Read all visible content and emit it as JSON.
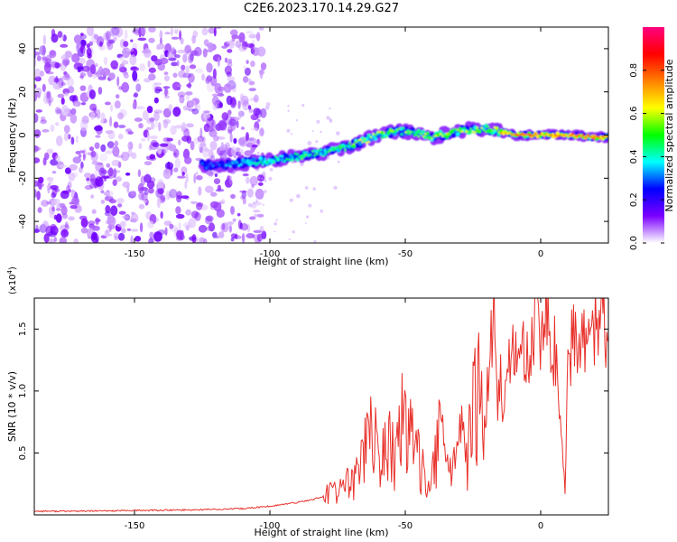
{
  "title": "C2E6.2023.170.14.29.G27",
  "chart_data": [
    {
      "type": "heatmap",
      "xlabel": "Height of straight line (km)",
      "ylabel": "Frequency (Hz)",
      "xlim": [
        -187,
        25
      ],
      "ylim": [
        -50,
        50
      ],
      "xticks": [
        -150,
        -100,
        -50,
        0
      ],
      "yticks": [
        -40,
        -20,
        0,
        20,
        40
      ],
      "colorbar": {
        "label": "Normalized spectral amplitude",
        "range": [
          0,
          1
        ],
        "ticks": [
          "0.0",
          "0.2",
          "0.4",
          "0.6",
          "0.8"
        ],
        "tick_values": [
          0.0,
          0.2,
          0.4,
          0.6,
          0.8
        ],
        "colormap": [
          "#ffffff",
          "#7b00ff",
          "#0000ff",
          "#00ffff",
          "#00ff00",
          "#ffff00",
          "#ff8000",
          "#ff0000",
          "#ff0080"
        ]
      },
      "noise_region_x": [
        -187,
        -108
      ],
      "ridge": {
        "x": [
          -125,
          -118,
          -110,
          -100,
          -90,
          -80,
          -70,
          -60,
          -50,
          -40,
          -30,
          -20,
          -10,
          0,
          10,
          20,
          25
        ],
        "frequency": [
          -14,
          -14,
          -13,
          -12,
          -10,
          -8,
          -5,
          0,
          2,
          -1,
          2,
          3,
          0,
          0,
          0,
          -1,
          -1
        ],
        "amplitude": [
          0.3,
          0.3,
          0.4,
          0.45,
          0.5,
          0.5,
          0.55,
          0.6,
          0.55,
          0.55,
          0.6,
          0.6,
          0.8,
          0.8,
          0.8,
          0.8,
          0.8
        ]
      }
    },
    {
      "type": "line",
      "xlabel": "Height of straight line (km)",
      "ylabel": "SNR (10 * v/v)",
      "multiplier": "(x10^4)",
      "xlim": [
        -187,
        25
      ],
      "ylim": [
        0,
        17500
      ],
      "xticks": [
        -150,
        -100,
        -50,
        0
      ],
      "yticks": [
        5000,
        10000,
        15000
      ],
      "ytick_labels": [
        "0.5",
        "1.0",
        "1.5"
      ],
      "color": "#e8302a",
      "series": [
        {
          "x": [
            -187,
            -170,
            -150,
            -130,
            -110,
            -100,
            -90,
            -85,
            -80,
            -75,
            -72,
            -70,
            -66,
            -62,
            -60,
            -57,
            -54,
            -50,
            -47,
            -44,
            -40,
            -37,
            -34,
            -30,
            -27,
            -25,
            -23,
            -21,
            -19,
            -17,
            -16,
            -15,
            -14,
            -13,
            -12,
            -10,
            -8,
            -6,
            -4,
            -2,
            0,
            2,
            4,
            6,
            8,
            9,
            10,
            12,
            14,
            16,
            18,
            20,
            22,
            25
          ],
          "y": [
            300,
            300,
            350,
            400,
            500,
            700,
            1000,
            1200,
            1500,
            2000,
            2600,
            2200,
            4800,
            8000,
            3500,
            6000,
            4500,
            8500,
            5000,
            4000,
            3000,
            6500,
            4000,
            6000,
            4500,
            8000,
            9500,
            6000,
            12500,
            17000,
            7000,
            11000,
            9000,
            10000,
            12000,
            13000,
            11500,
            14000,
            12000,
            15500,
            13000,
            16500,
            14000,
            12500,
            5000,
            2000,
            11000,
            14500,
            12000,
            15000,
            13500,
            15000,
            16000,
            14500
          ]
        }
      ]
    }
  ]
}
